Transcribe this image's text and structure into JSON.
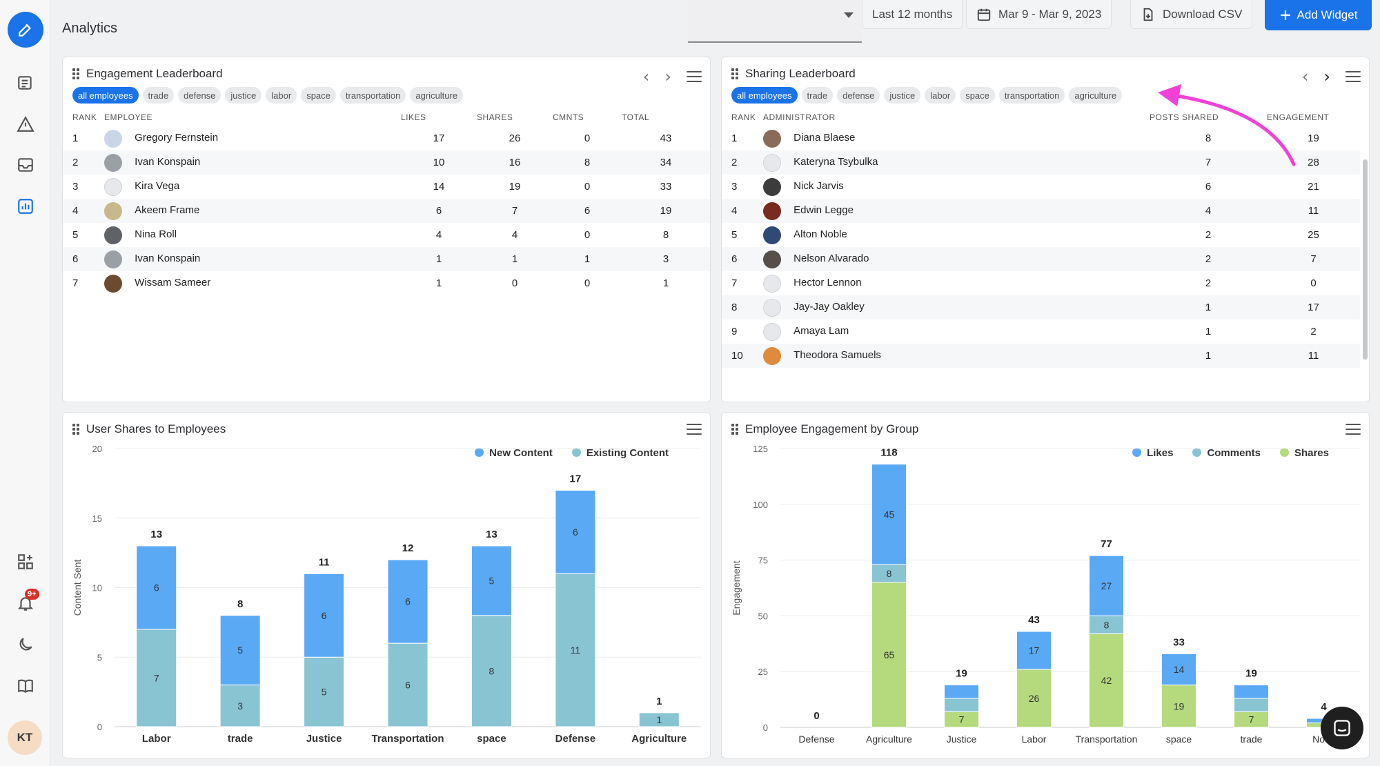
{
  "header": {
    "title": "Analytics",
    "date_range_preset": "Last 12 months",
    "date_range": "Mar 9 - Mar 9, 2023",
    "download_label": "Download CSV",
    "add_widget_label": "Add Widget"
  },
  "rail": {
    "notification_badge": "9+",
    "user_initials": "KT"
  },
  "chips": [
    "all employees",
    "trade",
    "defense",
    "justice",
    "labor",
    "space",
    "transportation",
    "agriculture"
  ],
  "engagement": {
    "title": "Engagement Leaderboard",
    "columns": [
      "RANK",
      "EMPLOYEE",
      "LIKES",
      "SHARES",
      "CMNTS",
      "TOTAL"
    ],
    "rows": [
      {
        "rank": "1",
        "name": "Gregory Fernstein",
        "likes": "17",
        "shares": "26",
        "cmnts": "0",
        "total": "43"
      },
      {
        "rank": "2",
        "name": "Ivan Konspain",
        "likes": "10",
        "shares": "16",
        "cmnts": "8",
        "total": "34"
      },
      {
        "rank": "3",
        "name": "Kira Vega",
        "likes": "14",
        "shares": "19",
        "cmnts": "0",
        "total": "33"
      },
      {
        "rank": "4",
        "name": "Akeem Frame",
        "likes": "6",
        "shares": "7",
        "cmnts": "6",
        "total": "19"
      },
      {
        "rank": "5",
        "name": "Nina Roll",
        "likes": "4",
        "shares": "4",
        "cmnts": "0",
        "total": "8"
      },
      {
        "rank": "6",
        "name": "Ivan Konspain",
        "likes": "1",
        "shares": "1",
        "cmnts": "1",
        "total": "3"
      },
      {
        "rank": "7",
        "name": "Wissam Sameer",
        "likes": "1",
        "shares": "0",
        "cmnts": "0",
        "total": "1"
      }
    ]
  },
  "sharing": {
    "title": "Sharing Leaderboard",
    "columns": [
      "RANK",
      "ADMINISTRATOR",
      "POSTS SHARED",
      "ENGAGEMENT"
    ],
    "rows": [
      {
        "rank": "1",
        "name": "Diana Blaese",
        "posts": "8",
        "engagement": "19"
      },
      {
        "rank": "2",
        "name": "Kateryna Tsybulka",
        "posts": "7",
        "engagement": "28"
      },
      {
        "rank": "3",
        "name": "Nick Jarvis",
        "posts": "6",
        "engagement": "21"
      },
      {
        "rank": "4",
        "name": "Edwin Legge",
        "posts": "4",
        "engagement": "11"
      },
      {
        "rank": "5",
        "name": "Alton Noble",
        "posts": "2",
        "engagement": "25"
      },
      {
        "rank": "6",
        "name": "Nelson Alvarado",
        "posts": "2",
        "engagement": "7"
      },
      {
        "rank": "7",
        "name": "Hector Lennon",
        "posts": "2",
        "engagement": "0"
      },
      {
        "rank": "8",
        "name": "Jay-Jay Oakley",
        "posts": "1",
        "engagement": "17"
      },
      {
        "rank": "9",
        "name": "Amaya Lam",
        "posts": "1",
        "engagement": "2"
      },
      {
        "rank": "10",
        "name": "Theodora Samuels",
        "posts": "1",
        "engagement": "11"
      }
    ]
  },
  "colors": {
    "primary": "#1a73e8",
    "new_content": "#5aa9f5",
    "existing_content": "#89c4d3",
    "likes": "#5aa9f5",
    "comments": "#89c4d3",
    "shares": "#b5d97d",
    "annotation_arrow": "#f040d6"
  },
  "chart_data": [
    {
      "type": "bar",
      "title": "User Shares to Employees",
      "ylabel": "Content Sent",
      "ylim": [
        0,
        20
      ],
      "yticks": [
        0,
        5,
        10,
        15,
        20
      ],
      "stacked": true,
      "categories": [
        "Labor",
        "trade",
        "Justice",
        "Transportation",
        "space",
        "Defense",
        "Agriculture"
      ],
      "series": [
        {
          "name": "Existing Content",
          "values": [
            7,
            3,
            5,
            6,
            8,
            11,
            1
          ],
          "color": "#89c4d3"
        },
        {
          "name": "New Content",
          "values": [
            6,
            5,
            6,
            6,
            5,
            6,
            0
          ],
          "color": "#5aa9f5"
        }
      ],
      "totals": [
        13,
        8,
        11,
        12,
        13,
        17,
        1
      ],
      "legend_order": [
        "New Content",
        "Existing Content"
      ],
      "legend": "top-right"
    },
    {
      "type": "bar",
      "title": "Employee Engagement by Group",
      "ylabel": "Engagement",
      "ylim": [
        0,
        125
      ],
      "yticks": [
        0,
        25,
        50,
        75,
        100,
        125
      ],
      "stacked": true,
      "categories": [
        "Defense",
        "Agriculture",
        "Justice",
        "Labor",
        "Transportation",
        "space",
        "trade",
        "No Group"
      ],
      "visible_category_labels": [
        "Defense",
        "Agriculture",
        "Justice",
        "Labor",
        "Transportation",
        "space",
        "trade",
        "No G"
      ],
      "series": [
        {
          "name": "Shares",
          "values": [
            0,
            65,
            7,
            26,
            42,
            19,
            7,
            2
          ],
          "color": "#b5d97d"
        },
        {
          "name": "Comments",
          "values": [
            0,
            8,
            6,
            0,
            8,
            0,
            6,
            0
          ],
          "color": "#89c4d3"
        },
        {
          "name": "Likes",
          "values": [
            0,
            45,
            6,
            17,
            27,
            14,
            6,
            2
          ],
          "color": "#5aa9f5"
        }
      ],
      "segment_labels": {
        "Shares": [
          "",
          "65",
          "7",
          "26",
          "42",
          "19",
          "7",
          ""
        ],
        "Comments": [
          "",
          "8",
          "",
          "",
          "8",
          "",
          "",
          ""
        ],
        "Likes": [
          "",
          "45",
          "",
          "17",
          "27",
          "14",
          "",
          ""
        ]
      },
      "totals": [
        0,
        118,
        19,
        43,
        77,
        33,
        19,
        4
      ],
      "legend_order": [
        "Likes",
        "Comments",
        "Shares"
      ],
      "legend": "top-right"
    }
  ]
}
